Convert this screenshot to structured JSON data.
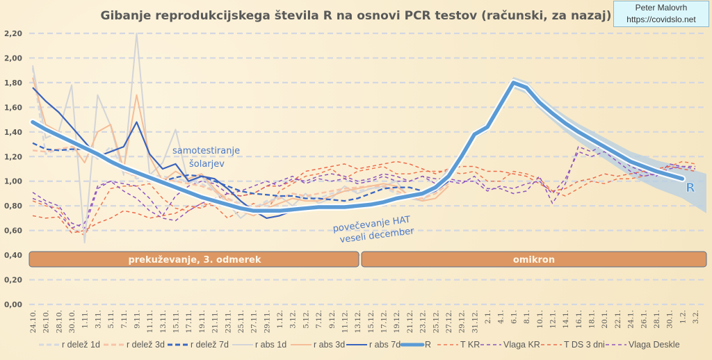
{
  "credit": {
    "author": "Peter Malovrh",
    "url": "https://covidslo.net"
  },
  "chart_data": {
    "type": "line",
    "title": "Gibanje reprodukcijskega števila R na osnovi PCR testov (računski, za nazaj)",
    "xlabel": "",
    "ylabel": "",
    "ylim": [
      0,
      2.2
    ],
    "grid": true,
    "legend_position": "bottom",
    "y_ticks": [
      "0,00",
      "0,20",
      "0,40",
      "0,60",
      "0,80",
      "1,00",
      "1,20",
      "1,40",
      "1,60",
      "1,80",
      "2,00",
      "2,20"
    ],
    "x": [
      "24.10.",
      "26.10.",
      "28.10.",
      "30.10.",
      "1.11.",
      "3.11.",
      "5.11.",
      "7.11.",
      "9.11.",
      "11.11.",
      "13.11.",
      "15.11.",
      "17.11.",
      "19.11.",
      "21.11.",
      "23.11.",
      "25.11.",
      "27.11.",
      "29.11.",
      "1.12.",
      "3.12.",
      "5.12.",
      "7.12.",
      "9.12.",
      "11.12.",
      "13.12.",
      "15.12.",
      "17.12.",
      "19.12.",
      "21.12.",
      "23.12.",
      "25.12.",
      "27.12.",
      "29.12.",
      "31.12.",
      "2.1.",
      "4.1.",
      "6.1.",
      "8.1.",
      "10.1.",
      "12.1.",
      "14.1.",
      "16.1.",
      "18.1.",
      "20.1.",
      "22.1.",
      "24.1.",
      "26.1.",
      "28.1.",
      "30.1.",
      "1.2.",
      "3.2."
    ],
    "series": [
      {
        "name": "r delež 1d",
        "color": "#d5d8e0",
        "style": "dashed",
        "values": [
          1.92,
          1.22,
          1.26,
          1.24,
          1.3,
          1.18,
          1.28,
          1.1,
          1.02,
          1.05,
          1.04,
          1.02,
          1.0,
          0.98,
          0.92,
          0.86,
          0.82,
          0.78,
          0.84,
          0.86,
          0.9,
          0.88,
          0.86,
          0.9,
          0.92,
          0.92,
          0.94,
          0.95,
          0.9,
          0.86,
          0.88,
          0.92,
          1.0,
          null,
          null,
          null,
          null,
          null,
          null,
          null,
          null,
          null,
          null,
          null,
          null,
          null,
          null,
          null,
          null,
          null,
          null,
          null
        ]
      },
      {
        "name": "r delež 3d",
        "color": "#f7c3a8",
        "style": "dashed",
        "values": [
          1.25,
          1.24,
          1.26,
          1.28,
          1.26,
          1.2,
          1.16,
          1.08,
          1.04,
          1.04,
          1.02,
          1.0,
          0.98,
          0.96,
          0.92,
          0.86,
          0.8,
          0.78,
          0.82,
          0.86,
          0.9,
          0.88,
          0.9,
          0.92,
          0.94,
          0.95,
          0.96,
          0.96,
          0.92,
          0.88,
          0.86,
          0.9,
          0.98,
          null,
          null,
          null,
          null,
          null,
          null,
          null,
          null,
          null,
          null,
          null,
          null,
          null,
          null,
          null,
          null,
          null,
          null,
          null
        ]
      },
      {
        "name": "r delež 7d",
        "color": "#3a68c4",
        "style": "dashed",
        "values": [
          1.31,
          1.26,
          1.25,
          1.26,
          1.26,
          1.22,
          1.14,
          1.1,
          1.06,
          1.02,
          1.0,
          1.03,
          1.05,
          1.04,
          1.0,
          0.96,
          0.92,
          0.9,
          0.89,
          0.88,
          0.88,
          0.86,
          0.86,
          0.85,
          0.84,
          0.86,
          0.9,
          0.94,
          0.95,
          0.95,
          0.92,
          null,
          null,
          null,
          null,
          null,
          null,
          null,
          null,
          null,
          null,
          null,
          null,
          null,
          null,
          null,
          null,
          null,
          null,
          null,
          null,
          null
        ]
      },
      {
        "name": "r abs 1d",
        "color": "#d3d4d8",
        "style": "solid",
        "values": [
          1.94,
          1.35,
          1.4,
          1.78,
          0.5,
          1.7,
          1.45,
          1.05,
          2.2,
          1.05,
          1.15,
          1.42,
          0.98,
          1.04,
          0.92,
          0.82,
          0.7,
          0.78,
          0.82,
          0.88,
          0.8,
          0.9,
          0.82,
          0.86,
          0.96,
          0.9,
          0.94,
          0.96,
          1.0,
          0.86,
          0.84,
          0.96,
          1.1,
          null,
          null,
          null,
          null,
          null,
          null,
          null,
          null,
          null,
          null,
          null,
          null,
          null,
          null,
          null,
          null,
          null,
          null,
          null
        ]
      },
      {
        "name": "r abs 3d",
        "color": "#f5bd98",
        "style": "solid",
        "values": [
          1.84,
          1.46,
          1.4,
          1.3,
          1.15,
          1.4,
          1.46,
          1.1,
          1.7,
          1.2,
          1.0,
          1.08,
          1.02,
          1.06,
          0.94,
          0.84,
          0.76,
          0.72,
          0.78,
          0.82,
          0.86,
          0.84,
          0.84,
          0.88,
          0.92,
          0.94,
          0.96,
          0.98,
          0.96,
          0.88,
          0.84,
          0.86,
          0.96,
          null,
          null,
          null,
          null,
          null,
          null,
          null,
          null,
          null,
          null,
          null,
          null,
          null,
          null,
          null,
          null,
          null,
          null,
          null
        ]
      },
      {
        "name": "r abs 7d",
        "color": "#3a63bd",
        "style": "solid",
        "values": [
          1.76,
          1.65,
          1.56,
          1.44,
          1.32,
          1.2,
          1.24,
          1.28,
          1.48,
          1.22,
          1.1,
          1.14,
          1.0,
          1.04,
          1.02,
          0.94,
          0.84,
          0.76,
          0.7,
          0.72,
          0.76,
          0.78,
          0.8,
          0.8,
          0.8,
          0.8,
          0.82,
          0.84,
          0.86,
          0.88,
          0.88,
          0.92,
          1.0,
          null,
          null,
          null,
          null,
          null,
          null,
          null,
          null,
          null,
          null,
          null,
          null,
          null,
          null,
          null,
          null,
          null,
          null,
          null
        ]
      },
      {
        "name": "R",
        "color": "#5b9bd5",
        "style": "thick",
        "values": [
          1.48,
          1.42,
          1.37,
          1.32,
          1.27,
          1.22,
          1.16,
          1.11,
          1.07,
          1.03,
          0.99,
          0.95,
          0.91,
          0.87,
          0.84,
          0.81,
          0.78,
          0.76,
          0.76,
          0.76,
          0.77,
          0.78,
          0.79,
          0.79,
          0.79,
          0.8,
          0.81,
          0.83,
          0.86,
          0.88,
          0.9,
          0.95,
          1.04,
          1.2,
          1.38,
          1.44,
          1.62,
          1.8,
          1.76,
          1.64,
          1.55,
          1.47,
          1.4,
          1.34,
          1.28,
          1.22,
          1.16,
          1.12,
          1.08,
          1.05,
          1.02,
          null
        ]
      },
      {
        "name": "T KR",
        "color": "#f07850",
        "style": "dashed",
        "values": [
          0.84,
          0.8,
          0.78,
          0.62,
          0.56,
          0.76,
          0.94,
          0.96,
          0.96,
          0.98,
          0.86,
          0.78,
          0.76,
          0.82,
          0.8,
          0.7,
          0.76,
          0.82,
          0.76,
          0.92,
          0.98,
          1.04,
          1.06,
          1.1,
          1.02,
          1.08,
          1.1,
          1.12,
          1.06,
          1.06,
          1.08,
          1.08,
          1.08,
          1.06,
          1.08,
          1.0,
          1.0,
          1.08,
          1.06,
          1.02,
          0.92,
          0.88,
          0.94,
          1.0,
          0.98,
          1.02,
          1.02,
          1.04,
          1.06,
          1.12,
          1.16,
          1.14
        ]
      },
      {
        "name": "Vlaga KR",
        "color": "#8a55c4",
        "style": "dashed",
        "values": [
          0.91,
          0.84,
          0.8,
          0.66,
          0.62,
          0.94,
          1.0,
          0.98,
          0.96,
          0.86,
          0.72,
          0.88,
          0.96,
          1.0,
          0.98,
          0.9,
          0.88,
          0.9,
          0.96,
          1.0,
          1.04,
          0.98,
          1.02,
          1.0,
          1.02,
          0.98,
          1.0,
          1.04,
          1.0,
          1.0,
          1.04,
          0.98,
          1.0,
          0.98,
          1.04,
          0.94,
          0.94,
          0.9,
          0.92,
          1.04,
          0.82,
          0.98,
          1.28,
          1.24,
          1.3,
          1.22,
          1.12,
          1.08,
          1.04,
          1.14,
          1.12,
          1.12
        ]
      },
      {
        "name": "T DS 3 dni",
        "color": "#ee6a4a",
        "style": "dashed",
        "values": [
          0.72,
          0.7,
          0.71,
          0.58,
          0.6,
          0.66,
          0.7,
          0.76,
          0.74,
          0.7,
          0.72,
          0.74,
          0.8,
          0.78,
          0.84,
          0.9,
          0.88,
          0.9,
          0.96,
          0.96,
          1.0,
          1.08,
          1.1,
          1.12,
          1.14,
          1.1,
          1.12,
          1.14,
          1.16,
          1.14,
          1.1,
          1.06,
          1.1,
          1.12,
          1.12,
          1.08,
          1.08,
          1.06,
          1.04,
          0.98,
          0.92,
          0.94,
          1.0,
          1.02,
          1.06,
          1.04,
          1.06,
          1.08,
          1.1,
          1.12,
          1.1,
          1.08
        ]
      },
      {
        "name": "Vlaga Deskle",
        "color": "#9055c0",
        "style": "dashed",
        "values": [
          0.86,
          0.82,
          0.74,
          0.62,
          0.66,
          0.96,
          1.0,
          0.92,
          0.86,
          0.76,
          0.7,
          0.68,
          0.76,
          0.82,
          0.86,
          0.9,
          0.92,
          0.96,
          1.0,
          0.96,
          1.02,
          1.0,
          1.04,
          1.06,
          1.04,
          1.0,
          1.02,
          1.06,
          1.04,
          1.0,
          1.04,
          1.02,
          1.02,
          1.0,
          1.0,
          0.92,
          0.96,
          0.94,
          0.98,
          1.0,
          0.9,
          1.02,
          1.24,
          1.2,
          1.24,
          1.16,
          1.08,
          1.04,
          1.06,
          1.1,
          1.12,
          1.1
        ]
      }
    ],
    "bands": [
      {
        "label": "prekuževanje, 3. odmerek",
        "color": "#dd9762"
      },
      {
        "label": "omikron",
        "color": "#dd9762"
      }
    ],
    "annotations": [
      {
        "text_lines": [
          "samotestiranje",
          "šolarjev"
        ]
      },
      {
        "text_lines": [
          "povečevanje HAT",
          "veseli december"
        ]
      },
      {
        "text": "R"
      }
    ]
  }
}
